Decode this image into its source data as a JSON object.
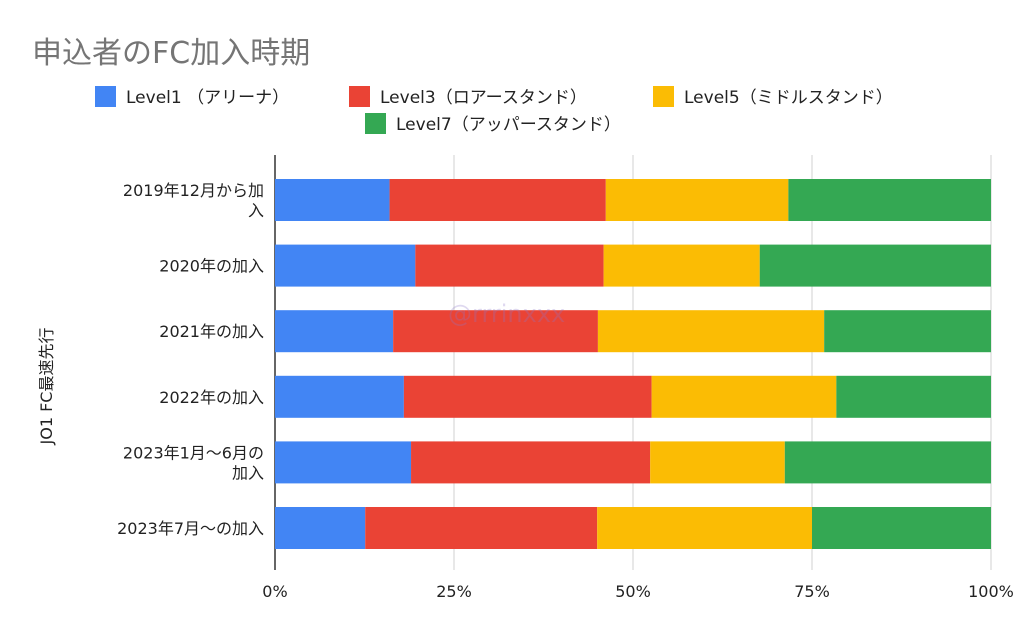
{
  "chart_data": {
    "type": "bar",
    "orientation": "horizontal",
    "stacked": "percent",
    "title": "申込者のFC加入時期",
    "ylabel": "JO1 FC最速先行",
    "xlabel": "",
    "xlim": [
      0,
      100
    ],
    "xticks": [
      "0%",
      "25%",
      "50%",
      "75%",
      "100%"
    ],
    "grid": true,
    "legend_position": "top",
    "categories": [
      [
        "2019年12月から加",
        "入"
      ],
      [
        "2020年の加入"
      ],
      [
        "2021年の加入"
      ],
      [
        "2022年の加入"
      ],
      [
        "2023年1月〜6月の",
        "加入"
      ],
      [
        "2023年7月〜の加入"
      ]
    ],
    "series": [
      {
        "name": "Level1 （アリーナ）",
        "color": "#4285f4",
        "values": [
          16,
          19.6,
          16.5,
          18,
          19,
          12.6
        ]
      },
      {
        "name": "Level3（ロアースタンド）",
        "color": "#ea4335",
        "values": [
          30.2,
          26.3,
          28.6,
          34.6,
          33.4,
          32.4
        ]
      },
      {
        "name": "Level5（ミドルスタンド）",
        "color": "#fbbc04",
        "values": [
          25.5,
          21.8,
          31.6,
          25.8,
          18.8,
          30
        ]
      },
      {
        "name": "Level7（アッパースタンド）",
        "color": "#34a853",
        "values": [
          28.3,
          32.3,
          23.3,
          21.6,
          28.8,
          25
        ]
      }
    ]
  },
  "watermark": "@rrrinxxx"
}
